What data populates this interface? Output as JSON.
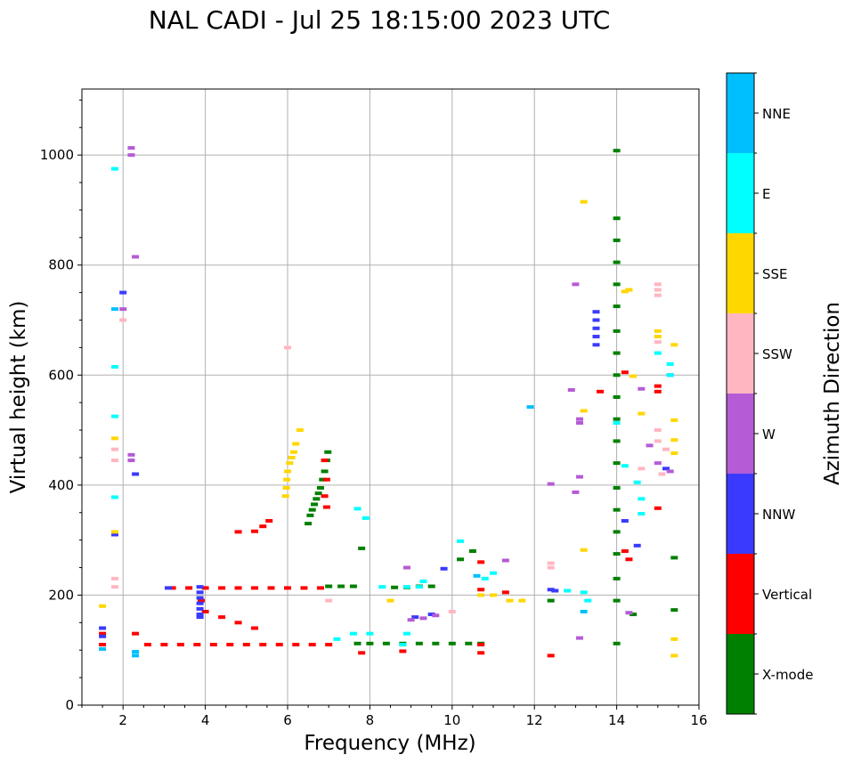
{
  "chart_data": {
    "type": "scatter",
    "title": "NAL CADI - Jul 25 18:15:00 2023 UTC",
    "xlabel": "Frequency (MHz)",
    "ylabel": "Virtual height (km)",
    "xlim": [
      1,
      16
    ],
    "ylim": [
      0,
      1120
    ],
    "xticks": [
      2,
      4,
      6,
      8,
      10,
      12,
      14,
      16
    ],
    "yticks": [
      0,
      200,
      400,
      600,
      800,
      1000
    ],
    "grid": true,
    "colorbar": {
      "label": "Azimuth Direction",
      "categories": [
        {
          "name": "X-mode",
          "color": "#008000"
        },
        {
          "name": "Vertical",
          "color": "#ff0000"
        },
        {
          "name": "NNW",
          "color": "#3a3aff"
        },
        {
          "name": "W",
          "color": "#b55bd6"
        },
        {
          "name": "SSW",
          "color": "#ffb6c1"
        },
        {
          "name": "SSE",
          "color": "#ffd700"
        },
        {
          "name": "E",
          "color": "#00ffff"
        },
        {
          "name": "NNE",
          "color": "#00bfff"
        }
      ]
    },
    "series": [
      {
        "name": "X-mode",
        "points": [
          [
            6.5,
            330
          ],
          [
            6.55,
            345
          ],
          [
            6.6,
            355
          ],
          [
            6.65,
            365
          ],
          [
            6.7,
            375
          ],
          [
            6.75,
            385
          ],
          [
            6.8,
            395
          ],
          [
            6.85,
            410
          ],
          [
            6.9,
            425
          ],
          [
            6.95,
            445
          ],
          [
            6.98,
            460
          ],
          [
            7.0,
            216
          ],
          [
            7.3,
            216
          ],
          [
            7.6,
            216
          ],
          [
            8.6,
            214
          ],
          [
            8.9,
            214
          ],
          [
            9.2,
            216
          ],
          [
            9.5,
            216
          ],
          [
            7.7,
            112
          ],
          [
            8.0,
            112
          ],
          [
            8.4,
            112
          ],
          [
            8.8,
            112
          ],
          [
            9.2,
            112
          ],
          [
            9.6,
            112
          ],
          [
            10.0,
            112
          ],
          [
            10.4,
            112
          ],
          [
            10.7,
            112
          ],
          [
            10.2,
            265
          ],
          [
            10.5,
            280
          ],
          [
            12.4,
            190
          ],
          [
            14.0,
            1008
          ],
          [
            14.0,
            885
          ],
          [
            14.0,
            845
          ],
          [
            14.0,
            805
          ],
          [
            14.0,
            765
          ],
          [
            14.0,
            725
          ],
          [
            14.0,
            680
          ],
          [
            14.0,
            640
          ],
          [
            14.0,
            600
          ],
          [
            14.0,
            560
          ],
          [
            14.0,
            520
          ],
          [
            14.0,
            480
          ],
          [
            14.0,
            440
          ],
          [
            14.0,
            395
          ],
          [
            14.0,
            355
          ],
          [
            14.0,
            315
          ],
          [
            14.0,
            275
          ],
          [
            14.0,
            230
          ],
          [
            14.0,
            190
          ],
          [
            14.0,
            112
          ],
          [
            14.4,
            165
          ],
          [
            15.4,
            268
          ],
          [
            15.4,
            173
          ],
          [
            7.8,
            285
          ]
        ]
      },
      {
        "name": "Vertical",
        "points": [
          [
            3.2,
            213
          ],
          [
            3.6,
            213
          ],
          [
            4.0,
            213
          ],
          [
            4.4,
            213
          ],
          [
            4.8,
            213
          ],
          [
            5.2,
            213
          ],
          [
            5.6,
            213
          ],
          [
            6.0,
            213
          ],
          [
            6.4,
            213
          ],
          [
            6.8,
            213
          ],
          [
            2.6,
            110
          ],
          [
            3.0,
            110
          ],
          [
            3.4,
            110
          ],
          [
            3.8,
            110
          ],
          [
            4.2,
            110
          ],
          [
            4.6,
            110
          ],
          [
            5.0,
            110
          ],
          [
            5.4,
            110
          ],
          [
            5.8,
            110
          ],
          [
            6.2,
            110
          ],
          [
            6.6,
            110
          ],
          [
            7.0,
            110
          ],
          [
            4.8,
            315
          ],
          [
            5.2,
            316
          ],
          [
            5.4,
            325
          ],
          [
            5.55,
            335
          ],
          [
            6.9,
            445
          ],
          [
            6.95,
            410
          ],
          [
            6.9,
            380
          ],
          [
            6.95,
            360
          ],
          [
            4.0,
            170
          ],
          [
            4.4,
            160
          ],
          [
            4.8,
            150
          ],
          [
            5.2,
            140
          ],
          [
            3.9,
            190
          ],
          [
            7.8,
            95
          ],
          [
            8.8,
            98
          ],
          [
            10.7,
            260
          ],
          [
            10.7,
            210
          ],
          [
            10.7,
            110
          ],
          [
            10.7,
            95
          ],
          [
            11.3,
            205
          ],
          [
            12.4,
            90
          ],
          [
            13.6,
            570
          ],
          [
            14.2,
            280
          ],
          [
            14.3,
            265
          ],
          [
            14.2,
            605
          ],
          [
            15.0,
            580
          ],
          [
            15.0,
            570
          ],
          [
            15.0,
            358
          ],
          [
            1.5,
            130
          ],
          [
            1.5,
            110
          ],
          [
            2.3,
            130
          ]
        ]
      },
      {
        "name": "NNW",
        "points": [
          [
            3.87,
            215
          ],
          [
            3.87,
            205
          ],
          [
            3.87,
            195
          ],
          [
            3.87,
            185
          ],
          [
            3.87,
            175
          ],
          [
            3.87,
            165
          ],
          [
            3.87,
            160
          ],
          [
            3.1,
            213
          ],
          [
            1.5,
            140
          ],
          [
            1.5,
            125
          ],
          [
            2.3,
            420
          ],
          [
            1.8,
            310
          ],
          [
            2.0,
            750
          ],
          [
            12.4,
            210
          ],
          [
            13.5,
            715
          ],
          [
            13.5,
            700
          ],
          [
            13.5,
            685
          ],
          [
            13.5,
            670
          ],
          [
            13.5,
            655
          ],
          [
            15.3,
            600
          ],
          [
            15.2,
            430
          ],
          [
            14.5,
            290
          ],
          [
            14.2,
            335
          ],
          [
            12.5,
            208
          ],
          [
            9.8,
            248
          ],
          [
            9.1,
            160
          ],
          [
            9.5,
            165
          ]
        ]
      },
      {
        "name": "W",
        "points": [
          [
            2.2,
            1013
          ],
          [
            2.2,
            1000
          ],
          [
            2.3,
            815
          ],
          [
            2.0,
            720
          ],
          [
            2.2,
            455
          ],
          [
            2.2,
            445
          ],
          [
            8.9,
            250
          ],
          [
            9.0,
            155
          ],
          [
            9.3,
            158
          ],
          [
            9.6,
            163
          ],
          [
            11.3,
            263
          ],
          [
            12.4,
            402
          ],
          [
            13.0,
            765
          ],
          [
            12.9,
            573
          ],
          [
            13.1,
            520
          ],
          [
            13.1,
            513
          ],
          [
            13.1,
            415
          ],
          [
            13.0,
            387
          ],
          [
            13.1,
            122
          ],
          [
            14.3,
            168
          ],
          [
            14.8,
            472
          ],
          [
            15.0,
            440
          ],
          [
            15.3,
            425
          ],
          [
            14.6,
            575
          ]
        ]
      },
      {
        "name": "SSW",
        "points": [
          [
            2.0,
            700
          ],
          [
            1.8,
            445
          ],
          [
            1.8,
            465
          ],
          [
            1.8,
            230
          ],
          [
            1.8,
            215
          ],
          [
            6.0,
            650
          ],
          [
            7.0,
            190
          ],
          [
            12.4,
            258
          ],
          [
            12.4,
            250
          ],
          [
            15.0,
            765
          ],
          [
            15.0,
            755
          ],
          [
            15.0,
            745
          ],
          [
            15.0,
            670
          ],
          [
            15.0,
            660
          ],
          [
            15.0,
            500
          ],
          [
            15.0,
            480
          ],
          [
            15.2,
            465
          ],
          [
            15.1,
            420
          ],
          [
            14.6,
            430
          ],
          [
            10.0,
            170
          ]
        ]
      },
      {
        "name": "SSE",
        "points": [
          [
            6.3,
            500
          ],
          [
            6.2,
            475
          ],
          [
            6.15,
            460
          ],
          [
            6.1,
            450
          ],
          [
            6.05,
            440
          ],
          [
            6.0,
            425
          ],
          [
            5.98,
            410
          ],
          [
            5.97,
            395
          ],
          [
            5.95,
            380
          ],
          [
            1.8,
            485
          ],
          [
            1.8,
            315
          ],
          [
            1.5,
            180
          ],
          [
            8.5,
            190
          ],
          [
            10.7,
            200
          ],
          [
            11.0,
            200
          ],
          [
            11.4,
            190
          ],
          [
            11.7,
            190
          ],
          [
            13.2,
            915
          ],
          [
            13.2,
            535
          ],
          [
            13.2,
            282
          ],
          [
            14.2,
            752
          ],
          [
            14.3,
            755
          ],
          [
            14.4,
            598
          ],
          [
            14.6,
            530
          ],
          [
            15.0,
            680
          ],
          [
            15.0,
            670
          ],
          [
            15.4,
            655
          ],
          [
            15.4,
            518
          ],
          [
            15.4,
            482
          ],
          [
            15.4,
            458
          ],
          [
            15.4,
            120
          ],
          [
            15.4,
            90
          ]
        ]
      },
      {
        "name": "E",
        "points": [
          [
            1.8,
            975
          ],
          [
            1.8,
            615
          ],
          [
            1.8,
            525
          ],
          [
            1.8,
            378
          ],
          [
            7.7,
            357
          ],
          [
            7.9,
            340
          ],
          [
            8.3,
            215
          ],
          [
            8.9,
            215
          ],
          [
            9.2,
            215
          ],
          [
            9.3,
            225
          ],
          [
            8.8,
            110
          ],
          [
            8.9,
            130
          ],
          [
            8.0,
            130
          ],
          [
            7.6,
            130
          ],
          [
            7.2,
            120
          ],
          [
            10.2,
            298
          ],
          [
            10.8,
            230
          ],
          [
            11.0,
            240
          ],
          [
            13.2,
            205
          ],
          [
            13.3,
            190
          ],
          [
            12.8,
            208
          ],
          [
            14.0,
            513
          ],
          [
            14.2,
            435
          ],
          [
            14.5,
            405
          ],
          [
            14.6,
            375
          ],
          [
            14.6,
            348
          ],
          [
            15.0,
            640
          ],
          [
            15.3,
            620
          ],
          [
            15.3,
            600
          ]
        ]
      },
      {
        "name": "NNE",
        "points": [
          [
            1.8,
            720
          ],
          [
            2.3,
            90
          ],
          [
            2.3,
            97
          ],
          [
            1.5,
            102
          ],
          [
            11.9,
            542
          ],
          [
            13.2,
            170
          ],
          [
            10.6,
            235
          ]
        ]
      }
    ]
  }
}
